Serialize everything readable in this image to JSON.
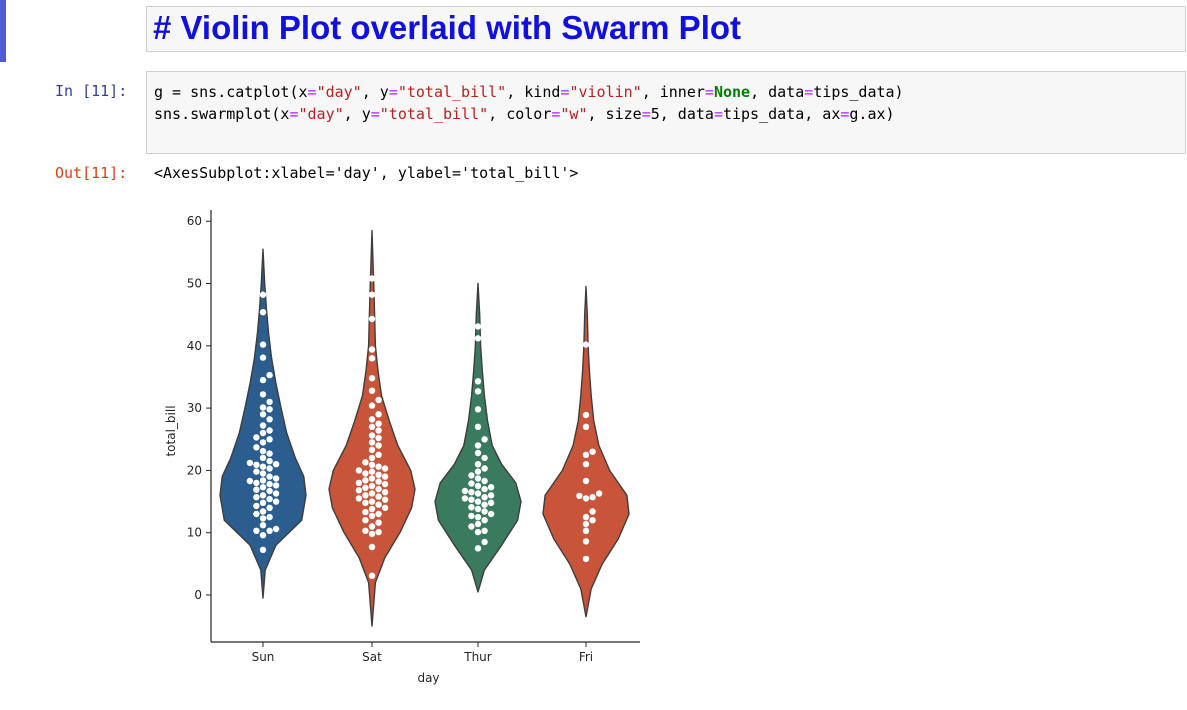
{
  "markdown_cell": {
    "title": "# Violin Plot overlaid with Swarm Plot"
  },
  "code_cell": {
    "prompt": "In [11]:",
    "line1": {
      "p1": "g = sns.catplot(x",
      "p2": "\"day\"",
      "p3": ", y",
      "p4": "\"total_bill\"",
      "p5": ", kind",
      "p6": "\"violin\"",
      "p7": ", inner",
      "p8": "None",
      "p9": ", data",
      "p10": "tips_data)"
    },
    "line2": {
      "p1": "sns.swarmplot(x",
      "p2": "\"day\"",
      "p3": ", y",
      "p4": "\"total_bill\"",
      "p5": ", color",
      "p6": "\"w\"",
      "p7": ", size",
      "p8": "5, data",
      "p9": "tips_data, ax",
      "p10": "g.ax)"
    },
    "eq": "="
  },
  "output_cell": {
    "prompt": "Out[11]:",
    "text": "<AxesSubplot:xlabel='day', ylabel='total_bill'>"
  },
  "chart_data": {
    "type": "violin",
    "xlabel": "day",
    "ylabel": "total_bill",
    "categories": [
      "Sun",
      "Sat",
      "Thur",
      "Fri"
    ],
    "ylim": [
      -8,
      62
    ],
    "yticks": [
      0,
      10,
      20,
      30,
      40,
      50,
      60
    ],
    "colors": [
      "#2b5d8f",
      "#c8553a",
      "#3a7a5e",
      "#c8553a"
    ],
    "swarm_color": "#ffffff",
    "violins": [
      {
        "name": "Sun",
        "min": -0.5,
        "max": 55.5,
        "profile": [
          [
            -0.5,
            0
          ],
          [
            4,
            0.05
          ],
          [
            8,
            0.3
          ],
          [
            12,
            0.9
          ],
          [
            16,
            1.0
          ],
          [
            19,
            0.95
          ],
          [
            22,
            0.75
          ],
          [
            26,
            0.55
          ],
          [
            30,
            0.42
          ],
          [
            34,
            0.3
          ],
          [
            38,
            0.2
          ],
          [
            42,
            0.13
          ],
          [
            46,
            0.08
          ],
          [
            50,
            0.04
          ],
          [
            55.5,
            0
          ]
        ]
      },
      {
        "name": "Sat",
        "min": -5,
        "max": 58.5,
        "profile": [
          [
            -5,
            0
          ],
          [
            2,
            0.08
          ],
          [
            6,
            0.3
          ],
          [
            10,
            0.65
          ],
          [
            14,
            0.92
          ],
          [
            17,
            1.0
          ],
          [
            20,
            0.9
          ],
          [
            24,
            0.6
          ],
          [
            28,
            0.4
          ],
          [
            32,
            0.22
          ],
          [
            36,
            0.14
          ],
          [
            40,
            0.08
          ],
          [
            45,
            0.06
          ],
          [
            50,
            0.04
          ],
          [
            58.5,
            0
          ]
        ]
      },
      {
        "name": "Thur",
        "min": 0.5,
        "max": 50,
        "profile": [
          [
            0.5,
            0
          ],
          [
            4,
            0.15
          ],
          [
            8,
            0.55
          ],
          [
            12,
            0.92
          ],
          [
            15,
            1.0
          ],
          [
            18,
            0.88
          ],
          [
            21,
            0.55
          ],
          [
            24,
            0.33
          ],
          [
            28,
            0.22
          ],
          [
            32,
            0.15
          ],
          [
            36,
            0.1
          ],
          [
            40,
            0.06
          ],
          [
            45,
            0.04
          ],
          [
            50,
            0
          ]
        ]
      },
      {
        "name": "Fri",
        "min": -3.5,
        "max": 49.5,
        "profile": [
          [
            -3.5,
            0
          ],
          [
            1,
            0.12
          ],
          [
            5,
            0.38
          ],
          [
            9,
            0.75
          ],
          [
            13,
            1.0
          ],
          [
            16,
            0.95
          ],
          [
            20,
            0.55
          ],
          [
            24,
            0.3
          ],
          [
            28,
            0.18
          ],
          [
            32,
            0.12
          ],
          [
            36,
            0.08
          ],
          [
            40,
            0.05
          ],
          [
            45,
            0.03
          ],
          [
            49.5,
            0
          ]
        ]
      }
    ],
    "swarm": [
      {
        "name": "Sun",
        "values": [
          7.25,
          9.6,
          10.3,
          10.3,
          10.6,
          11.2,
          12.3,
          12.5,
          13.0,
          13.4,
          14.0,
          14.3,
          14.8,
          15.0,
          15.4,
          15.7,
          16.0,
          16.3,
          16.7,
          16.9,
          17.3,
          17.6,
          17.8,
          18.0,
          18.3,
          18.4,
          18.7,
          19.0,
          19.5,
          19.8,
          20.3,
          20.6,
          20.9,
          21.0,
          21.2,
          21.5,
          22.0,
          22.7,
          23.1,
          23.7,
          24.5,
          25.0,
          25.3,
          26.0,
          26.4,
          27.2,
          28.2,
          29.0,
          29.8,
          30.1,
          31.0,
          32.2,
          34.5,
          35.3,
          38.1,
          40.2,
          45.4,
          48.2
        ]
      },
      {
        "name": "Sat",
        "values": [
          3.1,
          7.7,
          9.8,
          10.1,
          10.3,
          11.0,
          11.6,
          12.0,
          12.7,
          13.0,
          13.3,
          13.8,
          14.0,
          14.5,
          14.8,
          15.0,
          15.3,
          15.5,
          15.8,
          16.0,
          16.3,
          16.5,
          16.8,
          17.0,
          17.2,
          17.5,
          17.8,
          18.0,
          18.2,
          18.4,
          18.7,
          19.0,
          19.3,
          19.5,
          19.8,
          20.0,
          20.3,
          20.6,
          20.9,
          21.3,
          22.0,
          22.5,
          23.3,
          24.0,
          24.5,
          25.2,
          25.6,
          26.4,
          27.0,
          27.5,
          28.2,
          29.0,
          30.4,
          31.3,
          32.8,
          34.8,
          38.0,
          39.4,
          44.3,
          48.2,
          50.8
        ]
      },
      {
        "name": "Thur",
        "values": [
          7.5,
          8.5,
          10.1,
          10.3,
          11.0,
          11.4,
          12.0,
          12.5,
          12.7,
          13.0,
          13.4,
          13.8,
          14.1,
          14.5,
          14.8,
          15.0,
          15.3,
          15.5,
          15.7,
          16.0,
          16.3,
          16.5,
          16.7,
          17.0,
          17.3,
          17.5,
          17.9,
          18.3,
          18.7,
          19.2,
          19.8,
          20.3,
          21.0,
          22.0,
          22.8,
          24.0,
          25.0,
          27.0,
          29.8,
          32.7,
          34.3,
          41.2,
          43.1
        ]
      },
      {
        "name": "Fri",
        "values": [
          5.8,
          8.6,
          10.3,
          11.4,
          12.0,
          12.5,
          13.4,
          15.5,
          15.7,
          15.9,
          16.3,
          18.3,
          21.0,
          22.5,
          23.0,
          27.0,
          28.9,
          40.2
        ]
      }
    ]
  }
}
